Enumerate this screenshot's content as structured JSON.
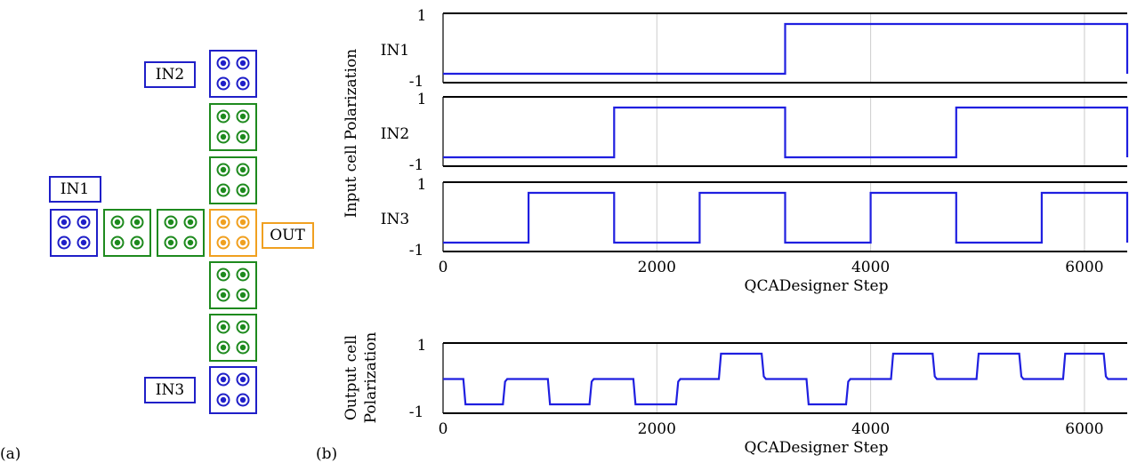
{
  "colors": {
    "input": "#1f1fc8",
    "wire": "#1e8a1e",
    "output": "#f0a020",
    "signal": "#1f1fe0",
    "grid": "#cccccc",
    "frame": "#000000"
  },
  "panel_a": {
    "caption": "(a)",
    "labels": {
      "in1": "IN1",
      "in2": "IN2",
      "in3": "IN3",
      "out": "OUT"
    }
  },
  "panel_b": {
    "caption": "(b)",
    "input_ylabel": "Input cell Polarization",
    "output_ylabel_line1": "Output cell",
    "output_ylabel_line2": "Polarization"
  },
  "chart_data": [
    {
      "type": "line",
      "title": "",
      "xlabel": "",
      "ylabel": "",
      "series_label": "IN1",
      "xlim": [
        0,
        6400
      ],
      "ylim": [
        -1,
        1
      ],
      "yticks": [
        "1",
        "-1"
      ],
      "grid": true,
      "series": [
        {
          "x": [
            0,
            3200,
            3200,
            6400,
            6400
          ],
          "y": [
            -1,
            -1,
            1,
            1,
            -1
          ]
        }
      ]
    },
    {
      "type": "line",
      "title": "",
      "xlabel": "",
      "ylabel": "",
      "series_label": "IN2",
      "xlim": [
        0,
        6400
      ],
      "ylim": [
        -1,
        1
      ],
      "yticks": [
        "1",
        "-1"
      ],
      "grid": true,
      "series": [
        {
          "x": [
            0,
            1600,
            1600,
            3200,
            3200,
            4800,
            4800,
            6400,
            6400
          ],
          "y": [
            -1,
            -1,
            1,
            1,
            -1,
            -1,
            1,
            1,
            -1
          ]
        }
      ]
    },
    {
      "type": "line",
      "title": "",
      "xlabel": "QCADesigner Step",
      "ylabel": "",
      "series_label": "IN3",
      "xlim": [
        0,
        6400
      ],
      "ylim": [
        -1,
        1
      ],
      "yticks": [
        "1",
        "-1"
      ],
      "xticks": [
        "0",
        "2000",
        "4000",
        "6000"
      ],
      "xtick_values": [
        0,
        2000,
        4000,
        6000
      ],
      "grid": true,
      "series": [
        {
          "x": [
            0,
            800,
            800,
            1600,
            1600,
            2400,
            2400,
            3200,
            3200,
            4000,
            4000,
            4800,
            4800,
            5600,
            5600,
            6400,
            6400
          ],
          "y": [
            -1,
            -1,
            1,
            1,
            -1,
            -1,
            1,
            1,
            -1,
            -1,
            1,
            1,
            -1,
            -1,
            1,
            1,
            -1
          ]
        }
      ]
    },
    {
      "type": "line",
      "title": "",
      "xlabel": "QCADesigner Step",
      "ylabel": "",
      "xlim": [
        0,
        6400
      ],
      "ylim": [
        -1,
        1
      ],
      "yticks": [
        "1",
        "-1"
      ],
      "xticks": [
        "0",
        "2000",
        "4000",
        "6000"
      ],
      "xtick_values": [
        0,
        2000,
        4000,
        6000
      ],
      "grid": true,
      "series": [
        {
          "x": [
            0,
            190,
            210,
            560,
            580,
            600,
            980,
            1000,
            1020,
            1370,
            1390,
            1410,
            1780,
            1800,
            1820,
            2180,
            2200,
            2220,
            2580,
            2600,
            2620,
            2980,
            3000,
            3020,
            3400,
            3420,
            3440,
            3770,
            3790,
            3810,
            4190,
            4210,
            4230,
            4580,
            4600,
            4620,
            4990,
            5010,
            5030,
            5390,
            5410,
            5430,
            5800,
            5820,
            5840,
            6180,
            6200,
            6220,
            6400
          ],
          "y": [
            0,
            0,
            -1,
            -1,
            -0.1,
            0,
            0,
            -1,
            -1,
            -1,
            -0.1,
            0,
            0,
            -1,
            -1,
            -1,
            -0.1,
            0,
            0,
            1,
            1,
            1,
            0.1,
            0,
            0,
            -1,
            -1,
            -1,
            -0.1,
            0,
            0,
            1,
            1,
            1,
            0.1,
            0,
            0,
            1,
            1,
            1,
            0.1,
            0,
            0,
            1,
            1,
            1,
            0.1,
            0,
            0
          ]
        }
      ]
    }
  ]
}
